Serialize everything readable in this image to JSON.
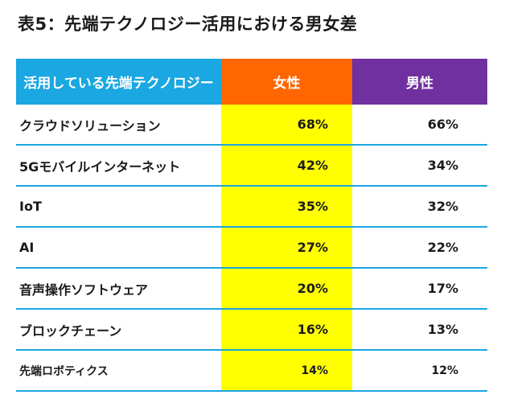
{
  "chart_data": {
    "type": "table",
    "title": "表5：先端テクノロジー活用における男女差",
    "columns": [
      "活用している先端テクノロジー",
      "女性",
      "男性"
    ],
    "rows": [
      {
        "label": "クラウドソリューション",
        "female": "68%",
        "male": "66%"
      },
      {
        "label": "5Gモバイルインターネット",
        "female": "42%",
        "male": "34%"
      },
      {
        "label": "IoT",
        "female": "35%",
        "male": "32%"
      },
      {
        "label": "AI",
        "female": "27%",
        "male": "22%"
      },
      {
        "label": "音声操作ソフトウェア",
        "female": "20%",
        "male": "17%"
      },
      {
        "label": "ブロックチェーン",
        "female": "16%",
        "male": "13%"
      },
      {
        "label": "先端ロボティクス",
        "female": "14%",
        "male": "12%"
      }
    ],
    "colors": {
      "header_label": "#1aa7e2",
      "header_female": "#ff6600",
      "header_male": "#7030a0",
      "female_column_fill": "#ffff00",
      "row_divider": "#1aa7e2"
    }
  }
}
